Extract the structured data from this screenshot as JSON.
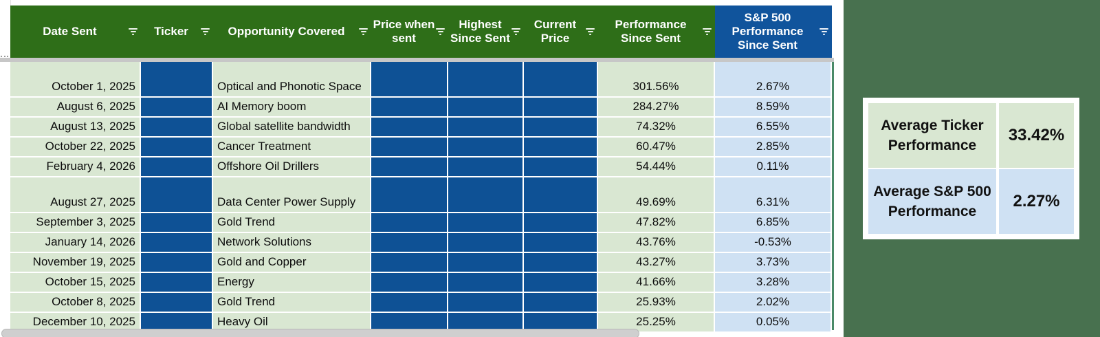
{
  "table": {
    "columns": [
      {
        "id": "date",
        "label": "Date Sent",
        "has_filter": true,
        "align": "right",
        "header_theme": "green",
        "redacted": false
      },
      {
        "id": "ticker",
        "label": "Ticker",
        "has_filter": true,
        "align": "left",
        "header_theme": "green",
        "redacted": true
      },
      {
        "id": "opportunity",
        "label": "Opportunity Covered",
        "has_filter": true,
        "align": "left",
        "header_theme": "green",
        "redacted": false
      },
      {
        "id": "price_sent",
        "label": "Price when sent",
        "has_filter": true,
        "align": "center",
        "header_theme": "green",
        "redacted": true
      },
      {
        "id": "highest",
        "label": "Highest Since Sent",
        "has_filter": true,
        "align": "center",
        "header_theme": "green",
        "redacted": true
      },
      {
        "id": "current",
        "label": "Current Price",
        "has_filter": true,
        "align": "center",
        "header_theme": "green",
        "redacted": true
      },
      {
        "id": "performance",
        "label": "Performance Since Sent",
        "has_filter": true,
        "align": "center",
        "header_theme": "green",
        "redacted": false
      },
      {
        "id": "sp500",
        "label": "S&P 500 Performance Since Sent",
        "has_filter": true,
        "align": "center",
        "header_theme": "blue",
        "redacted": false
      }
    ],
    "rows": [
      {
        "date": "October 1, 2025",
        "opportunity": "Optical and Phonotic Space",
        "performance": "301.56%",
        "sp500": "2.67%",
        "tall": true
      },
      {
        "date": "August 6, 2025",
        "opportunity": "AI Memory boom",
        "performance": "284.27%",
        "sp500": "8.59%",
        "tall": false
      },
      {
        "date": "August 13, 2025",
        "opportunity": "Global satellite bandwidth",
        "performance": "74.32%",
        "sp500": "6.55%",
        "tall": false
      },
      {
        "date": "October 22, 2025",
        "opportunity": "Cancer Treatment",
        "performance": "60.47%",
        "sp500": "2.85%",
        "tall": false
      },
      {
        "date": "February 4, 2026",
        "opportunity": "Offshore Oil Drillers",
        "performance": "54.44%",
        "sp500": "0.11%",
        "tall": false
      },
      {
        "date": "August 27, 2025",
        "opportunity": "Data Center Power Supply",
        "performance": "49.69%",
        "sp500": "6.31%",
        "tall": true
      },
      {
        "date": "September 3, 2025",
        "opportunity": "Gold Trend",
        "performance": "47.82%",
        "sp500": "6.85%",
        "tall": false
      },
      {
        "date": "January 14, 2026",
        "opportunity": "Network Solutions",
        "performance": "43.76%",
        "sp500": "-0.53%",
        "tall": false
      },
      {
        "date": "November 19, 2025",
        "opportunity": "Gold and Copper",
        "performance": "43.27%",
        "sp500": "3.73%",
        "tall": false
      },
      {
        "date": "October 15, 2025",
        "opportunity": "Energy",
        "performance": "41.66%",
        "sp500": "3.28%",
        "tall": false
      },
      {
        "date": "October 8, 2025",
        "opportunity": "Gold Trend",
        "performance": "25.93%",
        "sp500": "2.02%",
        "tall": false
      },
      {
        "date": "December 10, 2025",
        "opportunity": "Heavy Oil",
        "performance": "25.25%",
        "sp500": "0.05%",
        "tall": false
      }
    ]
  },
  "summary": {
    "rows": [
      {
        "label": "Average Ticker Performance",
        "value": "33.42%",
        "theme": "green"
      },
      {
        "label": "Average S&P 500 Performance",
        "value": "2.27%",
        "theme": "blue"
      }
    ]
  },
  "colors": {
    "header_green": "#2e6e18",
    "header_blue": "#10549c",
    "redacted_cell_blue": "#0e5195",
    "row_light_green": "#d9e7d2",
    "row_light_blue": "#cfe1f3",
    "page_background_green": "#48714f",
    "frozen_divider_gray": "#c7c7c7",
    "filter_range_border_green": "#4a8a68"
  }
}
